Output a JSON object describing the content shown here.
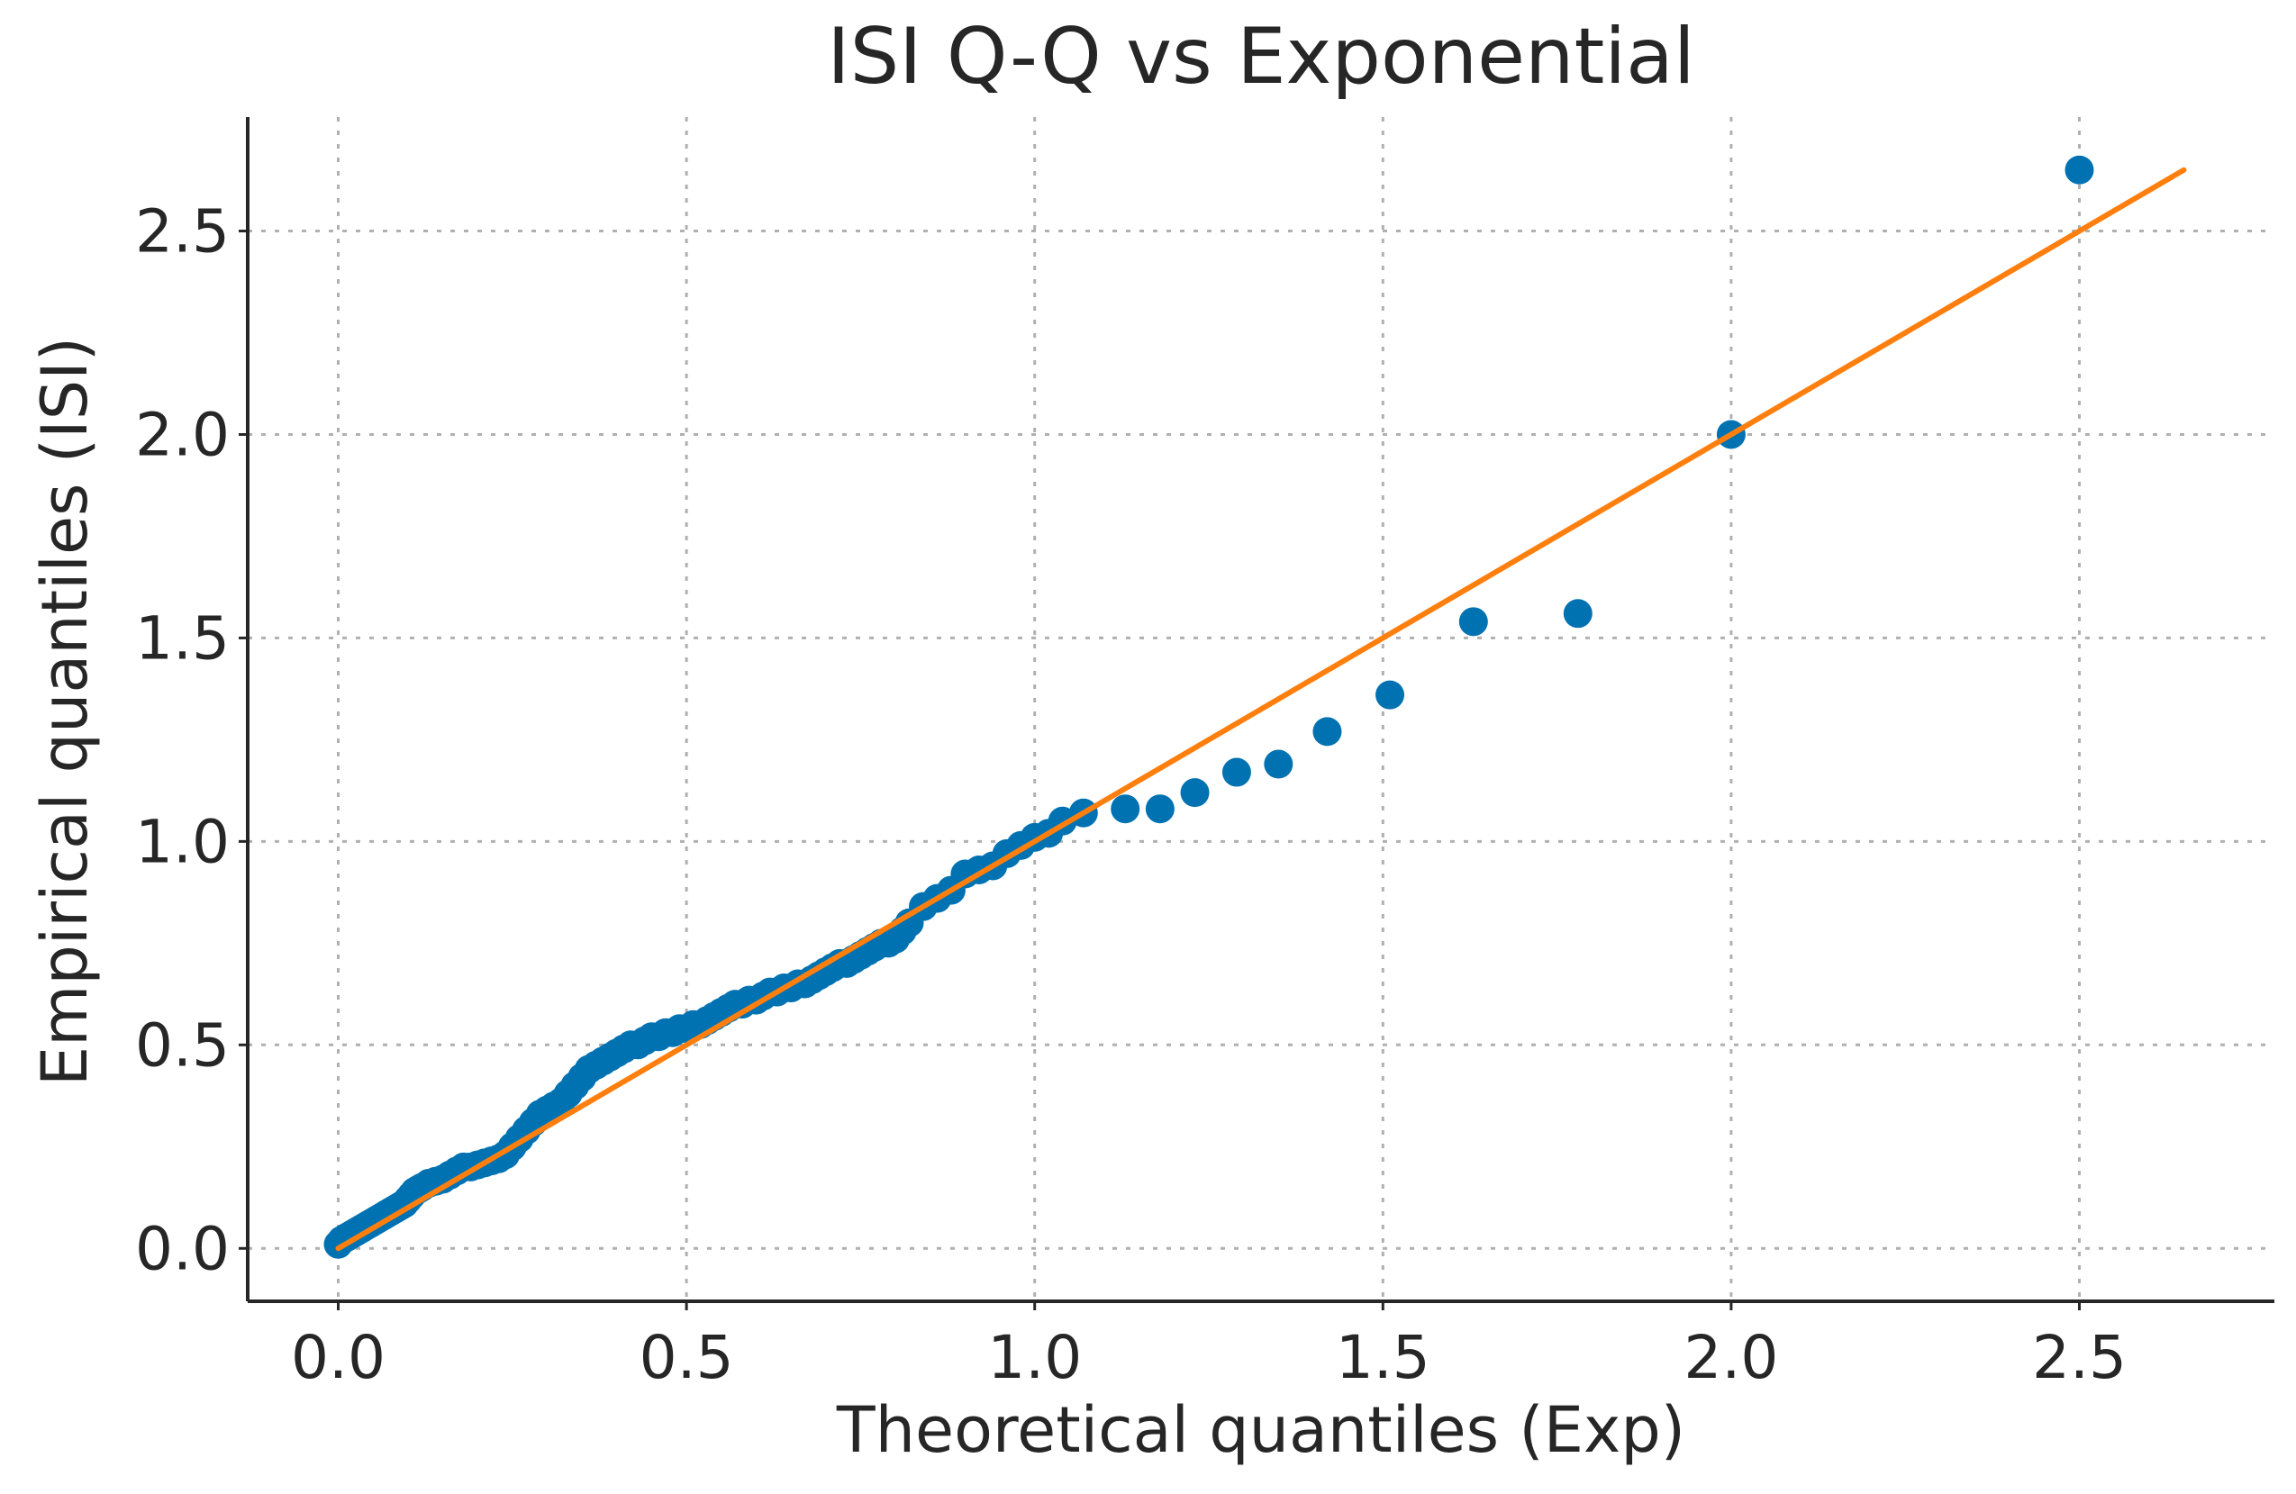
{
  "chart_data": {
    "type": "scatter",
    "title": "ISI Q-Q vs Exponential",
    "xlabel": "Theoretical quantiles (Exp)",
    "ylabel": "Empirical quantiles (ISI)",
    "xlim": [
      -0.13,
      2.78
    ],
    "ylim": [
      -0.13,
      2.78
    ],
    "x_ticks": [
      0.0,
      0.5,
      1.0,
      1.5,
      2.0,
      2.5
    ],
    "y_ticks": [
      0.0,
      0.5,
      1.0,
      1.5,
      2.0,
      2.5
    ],
    "x_tick_labels": [
      "0.0",
      "0.5",
      "1.0",
      "1.5",
      "2.0",
      "2.5"
    ],
    "y_tick_labels": [
      "0.0",
      "0.5",
      "1.0",
      "1.5",
      "2.0",
      "2.5"
    ],
    "grid": true,
    "series": [
      {
        "kind": "points",
        "color": "#0072b2",
        "x": [
          0.0,
          0.005,
          0.01,
          0.015,
          0.02,
          0.025,
          0.03,
          0.035,
          0.04,
          0.045,
          0.05,
          0.055,
          0.06,
          0.065,
          0.07,
          0.075,
          0.08,
          0.085,
          0.09,
          0.095,
          0.1,
          0.105,
          0.11,
          0.115,
          0.12,
          0.13,
          0.14,
          0.15,
          0.16,
          0.17,
          0.18,
          0.19,
          0.2,
          0.21,
          0.22,
          0.23,
          0.24,
          0.25,
          0.26,
          0.27,
          0.28,
          0.29,
          0.3,
          0.31,
          0.32,
          0.33,
          0.34,
          0.35,
          0.36,
          0.37,
          0.38,
          0.39,
          0.4,
          0.41,
          0.42,
          0.43,
          0.44,
          0.45,
          0.46,
          0.47,
          0.48,
          0.49,
          0.5,
          0.51,
          0.52,
          0.53,
          0.54,
          0.55,
          0.56,
          0.57,
          0.58,
          0.59,
          0.6,
          0.61,
          0.62,
          0.63,
          0.64,
          0.65,
          0.66,
          0.67,
          0.68,
          0.69,
          0.7,
          0.71,
          0.72,
          0.73,
          0.74,
          0.75,
          0.76,
          0.77,
          0.78,
          0.79,
          0.8,
          0.81,
          0.82,
          0.84,
          0.86,
          0.88,
          0.9,
          0.92,
          0.94,
          0.96,
          0.98,
          1.0,
          1.02,
          1.04,
          1.07,
          1.13,
          1.18,
          1.23,
          1.29,
          1.35,
          1.42,
          1.51,
          1.63,
          1.78,
          2.0,
          2.5
        ],
        "y": [
          0.01,
          0.02,
          0.025,
          0.03,
          0.035,
          0.04,
          0.045,
          0.05,
          0.055,
          0.06,
          0.065,
          0.07,
          0.075,
          0.08,
          0.085,
          0.09,
          0.095,
          0.1,
          0.105,
          0.11,
          0.12,
          0.13,
          0.14,
          0.145,
          0.15,
          0.16,
          0.165,
          0.17,
          0.18,
          0.19,
          0.2,
          0.2,
          0.205,
          0.21,
          0.215,
          0.22,
          0.23,
          0.25,
          0.27,
          0.29,
          0.31,
          0.33,
          0.34,
          0.35,
          0.36,
          0.38,
          0.4,
          0.42,
          0.44,
          0.45,
          0.46,
          0.47,
          0.48,
          0.49,
          0.5,
          0.5,
          0.51,
          0.52,
          0.52,
          0.53,
          0.53,
          0.54,
          0.54,
          0.55,
          0.55,
          0.56,
          0.57,
          0.58,
          0.59,
          0.6,
          0.6,
          0.61,
          0.61,
          0.62,
          0.63,
          0.63,
          0.64,
          0.64,
          0.65,
          0.65,
          0.66,
          0.67,
          0.68,
          0.69,
          0.7,
          0.7,
          0.71,
          0.72,
          0.73,
          0.74,
          0.75,
          0.75,
          0.76,
          0.78,
          0.8,
          0.84,
          0.86,
          0.88,
          0.92,
          0.93,
          0.94,
          0.97,
          0.99,
          1.01,
          1.02,
          1.05,
          1.07,
          1.08,
          1.08,
          1.12,
          1.17,
          1.19,
          1.27,
          1.36,
          1.54,
          1.56,
          2.0,
          2.65
        ]
      },
      {
        "kind": "line",
        "color": "#ff7f0e",
        "x": [
          0.0,
          2.65
        ],
        "y": [
          0.0,
          2.65
        ]
      }
    ]
  }
}
